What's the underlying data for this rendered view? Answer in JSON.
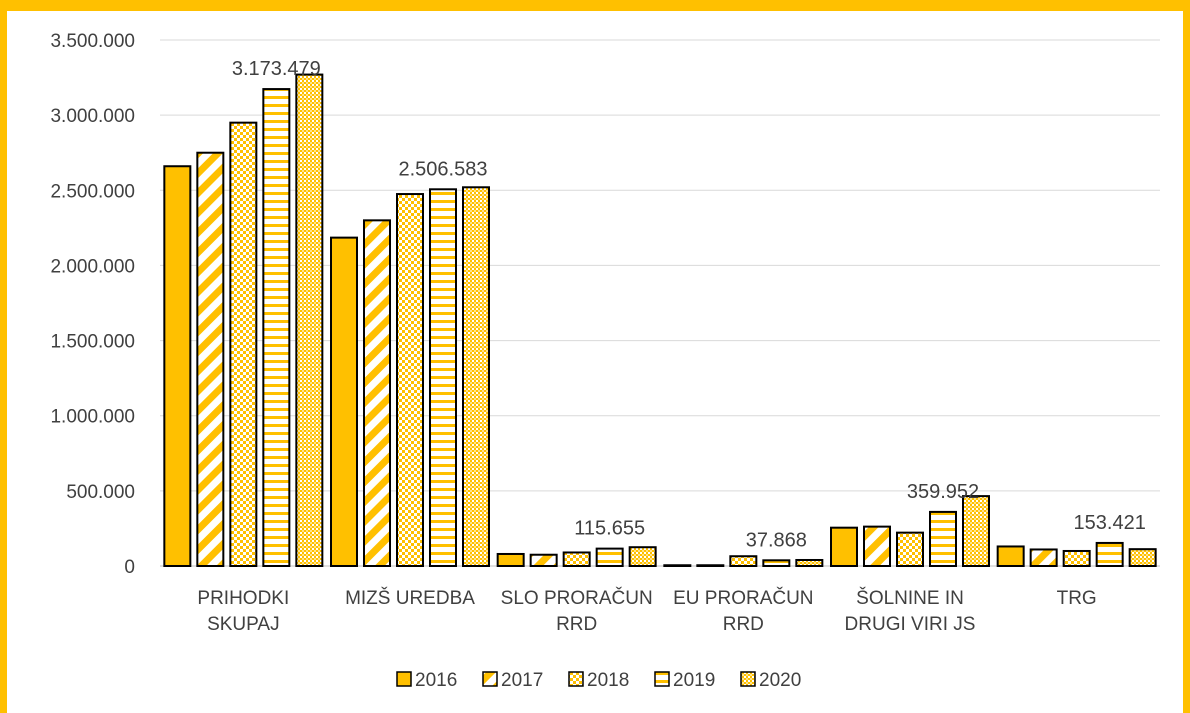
{
  "chart_data": {
    "type": "bar",
    "categories": [
      [
        "PRIHODKI",
        "SKUPAJ"
      ],
      [
        "MIZŠ UREDBA"
      ],
      [
        "SLO PRORAČUN",
        "RRD"
      ],
      [
        "EU PRORAČUN",
        "RRD"
      ],
      [
        "ŠOLNINE IN",
        "DRUGI VIRI JS"
      ],
      [
        "TRG"
      ]
    ],
    "series": [
      {
        "name": "2016",
        "color": "#FFC000",
        "pattern": "solid",
        "values": [
          2660000,
          2185000,
          80000,
          5000,
          255000,
          130000
        ]
      },
      {
        "name": "2017",
        "color": "#FFC000",
        "pattern": "diagonal",
        "values": [
          2750000,
          2300000,
          75000,
          5000,
          262000,
          110000
        ]
      },
      {
        "name": "2018",
        "color": "#FFC000",
        "pattern": "checker",
        "values": [
          2950000,
          2475000,
          90000,
          65000,
          222000,
          100000
        ]
      },
      {
        "name": "2019",
        "color": "#FFC000",
        "pattern": "horizontal",
        "values": [
          3173479,
          2506583,
          115655,
          37868,
          359952,
          153421
        ]
      },
      {
        "name": "2020",
        "color": "#FFC000",
        "pattern": "dotted",
        "values": [
          3270000,
          2520000,
          125000,
          40000,
          465000,
          112000
        ]
      }
    ],
    "data_labels": [
      "3.173.479",
      "2.506.583",
      "115.655",
      "37.868",
      "359.952",
      "153.421"
    ],
    "data_label_series": "2019",
    "y_ticks": [
      0,
      500000,
      1000000,
      1500000,
      2000000,
      2500000,
      3000000,
      3500000
    ],
    "y_tick_labels": [
      "0",
      "500.000",
      "1.000.000",
      "1.500.000",
      "2.000.000",
      "2.500.000",
      "3.000.000",
      "3.500.000"
    ],
    "ylim": [
      0,
      3500000
    ],
    "grid": true,
    "legend_position": "bottom",
    "title": "",
    "xlabel": "",
    "ylabel": ""
  }
}
